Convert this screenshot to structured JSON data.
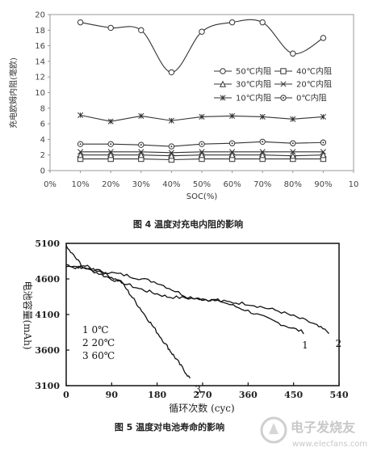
{
  "chart_data": [
    {
      "type": "line",
      "caption": "图 4 温度对充电内阻的影响",
      "xlabel": "SOC(%)",
      "ylabel": "充电欧姆内阻(毫欧)",
      "x_ticks": [
        "0%",
        "10%",
        "20%",
        "30%",
        "40%",
        "50%",
        "60%",
        "70%",
        "80%",
        "90%",
        "10"
      ],
      "y_ticks": [
        "0",
        "2",
        "4",
        "6",
        "8",
        "10",
        "12",
        "14",
        "16",
        "18",
        "20"
      ],
      "ylim": [
        0,
        20
      ],
      "x": [
        10,
        20,
        30,
        40,
        50,
        60,
        70,
        80,
        90
      ],
      "series": [
        {
          "name": "50℃内阻",
          "marker": "circle",
          "values": [
            19.0,
            18.3,
            18.0,
            12.6,
            17.8,
            19.0,
            19.0,
            15.0,
            17.0
          ]
        },
        {
          "name": "40℃内阻",
          "marker": "square",
          "values": [
            1.5,
            1.5,
            1.5,
            1.4,
            1.5,
            1.5,
            1.5,
            1.5,
            1.5
          ]
        },
        {
          "name": "30℃内阻",
          "marker": "triangle",
          "values": [
            2.0,
            2.0,
            2.0,
            1.9,
            2.0,
            2.0,
            2.0,
            1.9,
            2.0
          ]
        },
        {
          "name": "20℃内阻",
          "marker": "x",
          "values": [
            2.4,
            2.4,
            2.4,
            2.3,
            2.4,
            2.4,
            2.4,
            2.4,
            2.4
          ]
        },
        {
          "name": "10℃内阻",
          "marker": "star",
          "values": [
            7.1,
            6.3,
            7.0,
            6.4,
            6.9,
            7.0,
            6.9,
            6.6,
            6.9
          ]
        },
        {
          "name": "0℃内阻",
          "marker": "dot",
          "values": [
            3.4,
            3.4,
            3.3,
            3.1,
            3.4,
            3.5,
            3.7,
            3.5,
            3.6
          ]
        }
      ],
      "legend": "center, two columns"
    },
    {
      "type": "line",
      "caption": "图 5 温度对电池寿命的影响",
      "xlabel": "循环次数 (cyc)",
      "ylabel": "电池容量(mAh)",
      "x_ticks": [
        "0",
        "90",
        "180",
        "270",
        "360",
        "450",
        "540"
      ],
      "y_ticks": [
        "3100",
        "3600",
        "4100",
        "4600",
        "5100"
      ],
      "xlim": [
        0,
        540
      ],
      "ylim": [
        3100,
        5100
      ],
      "legend_entries": [
        "1 0℃",
        "2 20℃",
        "3 60℃"
      ],
      "series": [
        {
          "name": "1",
          "x": [
            0,
            40,
            90,
            150,
            200,
            260,
            300,
            360,
            420,
            470
          ],
          "values": [
            4800,
            4750,
            4600,
            4450,
            4350,
            4320,
            4300,
            4150,
            3980,
            3850
          ]
        },
        {
          "name": "2",
          "x": [
            0,
            60,
            120,
            180,
            240,
            300,
            360,
            420,
            480,
            520
          ],
          "values": [
            4780,
            4720,
            4650,
            4550,
            4350,
            4290,
            4250,
            4150,
            4000,
            3850
          ]
        },
        {
          "name": "3",
          "x": [
            0,
            30,
            70,
            110,
            140,
            170,
            200,
            220,
            245
          ],
          "values": [
            5050,
            4800,
            4700,
            4550,
            4250,
            3950,
            3650,
            3450,
            3200
          ]
        }
      ],
      "curve_labels": [
        "1",
        "2",
        "3"
      ]
    }
  ],
  "watermark": {
    "title": "电子发烧友",
    "url": "www.elecfans.com"
  }
}
